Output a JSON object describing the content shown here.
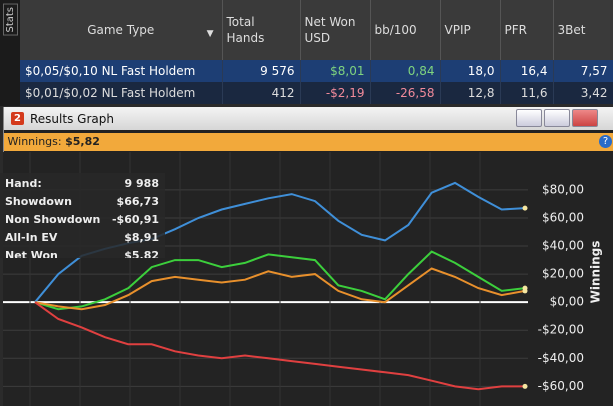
{
  "sidebar_tab": "Stats",
  "table": {
    "columns": [
      "Game Type",
      "Total Hands",
      "Net Won USD",
      "bb/100",
      "VPIP",
      "PFR",
      "3Bet"
    ],
    "rows": [
      [
        "$0,05/$0,10 NL Fast Holdem",
        "9 576",
        "$8,01",
        "0,84",
        "18,0",
        "16,4",
        "7,57"
      ],
      [
        "$0,01/$0,02 NL Fast Holdem",
        "412",
        "-$2,19",
        "-26,58",
        "12,8",
        "11,6",
        "3,42"
      ]
    ],
    "colored_columns": [
      2,
      3
    ],
    "positive_color": "#7fd47f",
    "negative_color": "#f08a9a"
  },
  "window": {
    "badge": "2",
    "title": "Results Graph",
    "summary_label": "Winnings:",
    "summary_value": "$5,82"
  },
  "chart_data": {
    "type": "line",
    "y_label": "Winnings",
    "ylim": [
      -74,
      107
    ],
    "yticks": [
      {
        "value": 80,
        "label": "$80,00"
      },
      {
        "value": 60,
        "label": "$60,00"
      },
      {
        "value": 40,
        "label": "$40,00"
      },
      {
        "value": 20,
        "label": "$20,00"
      },
      {
        "value": 0,
        "label": "$0,00"
      },
      {
        "value": -20,
        "label": "-$20,00"
      },
      {
        "value": -40,
        "label": "-$40,00"
      },
      {
        "value": -60,
        "label": "-$60,00"
      }
    ],
    "grid": true,
    "series": [
      {
        "color": "#3f8fd8",
        "values": [
          0,
          20,
          33,
          38,
          42,
          45,
          52,
          60,
          66,
          70,
          74,
          77,
          72,
          58,
          48,
          44,
          55,
          78,
          85,
          75,
          66,
          67
        ]
      },
      {
        "color": "#3ccf3c",
        "values": [
          0,
          -5,
          -3,
          2,
          10,
          25,
          30,
          30,
          25,
          28,
          34,
          32,
          30,
          12,
          8,
          2,
          20,
          36,
          28,
          18,
          8,
          10
        ]
      },
      {
        "color": "#e8902c",
        "values": [
          0,
          -3,
          -5,
          -2,
          5,
          15,
          18,
          16,
          14,
          16,
          22,
          18,
          20,
          8,
          2,
          0,
          12,
          24,
          18,
          10,
          5,
          8
        ]
      },
      {
        "color": "#e04040",
        "values": [
          0,
          -12,
          -18,
          -25,
          -30,
          -30,
          -35,
          -38,
          -40,
          -38,
          -40,
          -42,
          -44,
          -46,
          -48,
          -50,
          -52,
          -56,
          -60,
          -62,
          -60,
          -60
        ]
      }
    ],
    "tooltip": [
      [
        "Hand:",
        "9 988"
      ],
      [
        "Showdown",
        "$66,73"
      ],
      [
        "Non Showdown",
        "-$60,91"
      ],
      [
        "All-In EV",
        "$8,91"
      ],
      [
        "Net Won",
        "$5,82"
      ]
    ]
  }
}
